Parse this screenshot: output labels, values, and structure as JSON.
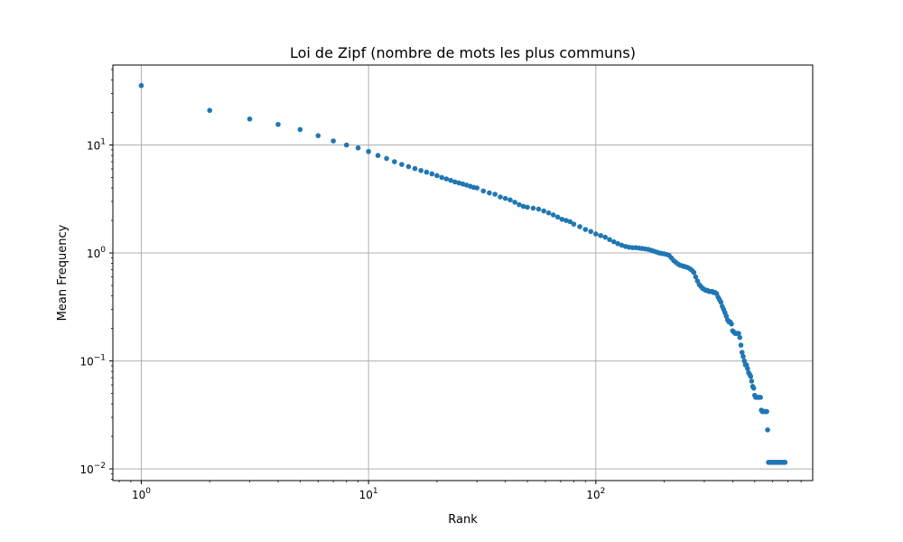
{
  "chart_data": {
    "type": "scatter",
    "title": "Loi de Zipf (nombre de mots les plus communs)",
    "xlabel": "Rank",
    "ylabel": "Mean Frequency",
    "xscale": "log",
    "yscale": "log",
    "xlim": [
      0.75,
      900
    ],
    "ylim": [
      0.0078,
      55
    ],
    "grid": true,
    "marker_color": "#1f77b4",
    "x_ticks": [
      {
        "base": "10",
        "exp": "0"
      },
      {
        "base": "10",
        "exp": "1"
      },
      {
        "base": "10",
        "exp": "2"
      }
    ],
    "y_ticks": [
      {
        "base": "10",
        "exp": "1"
      },
      {
        "base": "10",
        "exp": "0"
      },
      {
        "base": "10",
        "exp": "−1"
      },
      {
        "base": "10",
        "exp": "−2"
      }
    ],
    "points": [
      [
        1,
        35.5
      ],
      [
        2,
        20.9
      ],
      [
        3,
        17.4
      ],
      [
        4,
        15.5
      ],
      [
        5,
        13.9
      ],
      [
        6,
        12.2
      ],
      [
        7,
        10.9
      ],
      [
        8,
        10.0
      ],
      [
        9,
        9.4
      ],
      [
        10,
        8.7
      ],
      [
        11,
        8.0
      ],
      [
        12,
        7.5
      ],
      [
        13,
        7.0
      ],
      [
        14,
        6.6
      ],
      [
        15,
        6.3
      ],
      [
        16,
        6.05
      ],
      [
        17,
        5.8
      ],
      [
        18,
        5.6
      ],
      [
        19,
        5.4
      ],
      [
        20,
        5.2
      ],
      [
        21,
        5.0
      ],
      [
        22,
        4.85
      ],
      [
        23,
        4.7
      ],
      [
        24,
        4.55
      ],
      [
        25,
        4.45
      ],
      [
        26,
        4.35
      ],
      [
        27,
        4.25
      ],
      [
        28,
        4.15
      ],
      [
        29,
        4.05
      ],
      [
        30,
        4.0
      ],
      [
        32,
        3.75
      ],
      [
        34,
        3.6
      ],
      [
        36,
        3.5
      ],
      [
        38,
        3.3
      ],
      [
        40,
        3.2
      ],
      [
        42,
        3.1
      ],
      [
        44,
        2.95
      ],
      [
        46,
        2.8
      ],
      [
        48,
        2.7
      ],
      [
        50,
        2.65
      ],
      [
        53,
        2.6
      ],
      [
        56,
        2.55
      ],
      [
        59,
        2.45
      ],
      [
        62,
        2.35
      ],
      [
        65,
        2.25
      ],
      [
        68,
        2.15
      ],
      [
        71,
        2.05
      ],
      [
        74,
        2.0
      ],
      [
        77,
        1.95
      ],
      [
        80,
        1.85
      ],
      [
        85,
        1.75
      ],
      [
        90,
        1.65
      ],
      [
        95,
        1.58
      ],
      [
        100,
        1.5
      ],
      [
        105,
        1.45
      ],
      [
        110,
        1.4
      ],
      [
        115,
        1.33
      ],
      [
        120,
        1.27
      ],
      [
        125,
        1.22
      ],
      [
        130,
        1.18
      ],
      [
        135,
        1.15
      ],
      [
        140,
        1.13
      ],
      [
        145,
        1.12
      ],
      [
        150,
        1.12
      ],
      [
        155,
        1.11
      ],
      [
        160,
        1.1
      ],
      [
        165,
        1.09
      ],
      [
        170,
        1.08
      ],
      [
        175,
        1.06
      ],
      [
        180,
        1.04
      ],
      [
        185,
        1.02
      ],
      [
        190,
        1.0
      ],
      [
        195,
        0.99
      ],
      [
        200,
        0.98
      ],
      [
        205,
        0.97
      ],
      [
        210,
        0.95
      ],
      [
        215,
        0.9
      ],
      [
        220,
        0.85
      ],
      [
        225,
        0.82
      ],
      [
        230,
        0.79
      ],
      [
        235,
        0.77
      ],
      [
        240,
        0.76
      ],
      [
        245,
        0.75
      ],
      [
        250,
        0.74
      ],
      [
        255,
        0.73
      ],
      [
        260,
        0.71
      ],
      [
        265,
        0.69
      ],
      [
        270,
        0.66
      ],
      [
        275,
        0.6
      ],
      [
        280,
        0.55
      ],
      [
        285,
        0.51
      ],
      [
        290,
        0.49
      ],
      [
        295,
        0.47
      ],
      [
        300,
        0.46
      ],
      [
        305,
        0.45
      ],
      [
        310,
        0.45
      ],
      [
        315,
        0.44
      ],
      [
        320,
        0.44
      ],
      [
        325,
        0.44
      ],
      [
        330,
        0.43
      ],
      [
        335,
        0.43
      ],
      [
        340,
        0.42
      ],
      [
        345,
        0.39
      ],
      [
        350,
        0.37
      ],
      [
        355,
        0.35
      ],
      [
        360,
        0.32
      ],
      [
        365,
        0.3
      ],
      [
        370,
        0.28
      ],
      [
        375,
        0.26
      ],
      [
        380,
        0.24
      ],
      [
        385,
        0.23
      ],
      [
        390,
        0.23
      ],
      [
        395,
        0.22
      ],
      [
        400,
        0.19
      ],
      [
        405,
        0.185
      ],
      [
        410,
        0.18
      ],
      [
        415,
        0.18
      ],
      [
        420,
        0.18
      ],
      [
        425,
        0.18
      ],
      [
        430,
        0.165
      ],
      [
        435,
        0.14
      ],
      [
        440,
        0.12
      ],
      [
        445,
        0.11
      ],
      [
        450,
        0.1
      ],
      [
        455,
        0.092
      ],
      [
        460,
        0.092
      ],
      [
        465,
        0.085
      ],
      [
        470,
        0.078
      ],
      [
        475,
        0.075
      ],
      [
        480,
        0.072
      ],
      [
        485,
        0.065
      ],
      [
        490,
        0.058
      ],
      [
        495,
        0.056
      ],
      [
        500,
        0.048
      ],
      [
        505,
        0.046
      ],
      [
        510,
        0.046
      ],
      [
        515,
        0.046
      ],
      [
        520,
        0.046
      ],
      [
        525,
        0.046
      ],
      [
        530,
        0.046
      ],
      [
        535,
        0.035
      ],
      [
        540,
        0.034
      ],
      [
        545,
        0.034
      ],
      [
        550,
        0.034
      ],
      [
        555,
        0.034
      ],
      [
        560,
        0.034
      ],
      [
        565,
        0.034
      ],
      [
        570,
        0.023
      ],
      [
        575,
        0.0115
      ],
      [
        580,
        0.0115
      ],
      [
        590,
        0.0115
      ],
      [
        600,
        0.0115
      ],
      [
        610,
        0.0115
      ],
      [
        620,
        0.0115
      ],
      [
        630,
        0.0115
      ],
      [
        640,
        0.0115
      ],
      [
        650,
        0.0115
      ],
      [
        660,
        0.0115
      ],
      [
        670,
        0.0115
      ],
      [
        680,
        0.0115
      ]
    ]
  }
}
